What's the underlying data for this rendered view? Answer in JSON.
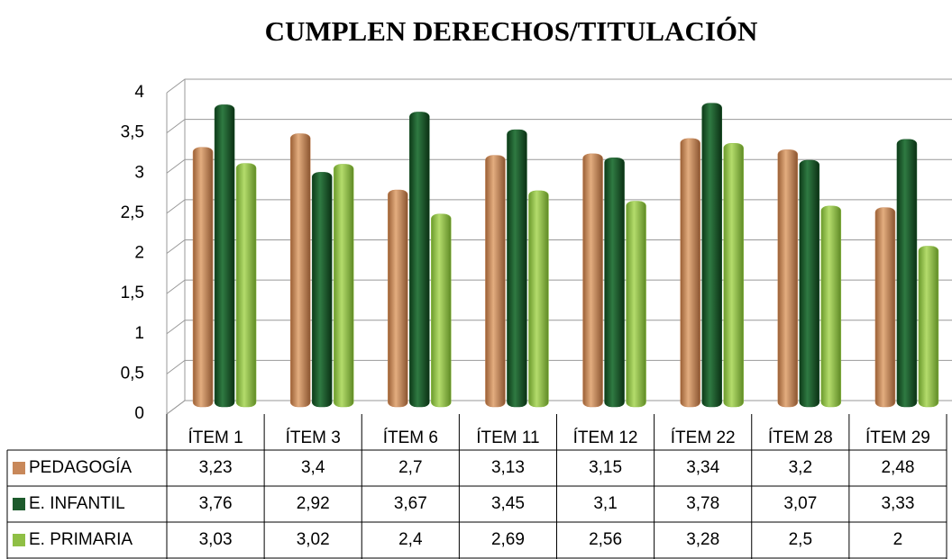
{
  "chart_data": {
    "type": "bar",
    "title": "CUMPLEN DERECHOS/TITULACIÓN",
    "categories": [
      "ÍTEM 1",
      "ÍTEM 3",
      "ÍTEM 6",
      "ÍTEM 11",
      "ÍTEM 12",
      "ÍTEM 22",
      "ÍTEM 28",
      "ÍTEM 29"
    ],
    "series": [
      {
        "name": "PEDAGOGÍA",
        "color": "#c8885a",
        "values": [
          3.23,
          3.4,
          2.7,
          3.13,
          3.15,
          3.34,
          3.2,
          2.48
        ],
        "value_labels": [
          "3,23",
          "3,4",
          "2,7",
          "3,13",
          "3,15",
          "3,34",
          "3,2",
          "2,48"
        ]
      },
      {
        "name": "E. INFANTIL",
        "color": "#1d5a2c",
        "values": [
          3.76,
          2.92,
          3.67,
          3.45,
          3.1,
          3.78,
          3.07,
          3.33
        ],
        "value_labels": [
          "3,76",
          "2,92",
          "3,67",
          "3,45",
          "3,1",
          "3,78",
          "3,07",
          "3,33"
        ]
      },
      {
        "name": "E. PRIMARIA",
        "color": "#8fbf45",
        "values": [
          3.03,
          3.02,
          2.4,
          2.69,
          2.56,
          3.28,
          2.5,
          2
        ],
        "value_labels": [
          "3,03",
          "3,02",
          "2,4",
          "2,69",
          "2,56",
          "3,28",
          "2,5",
          "2"
        ]
      }
    ],
    "ylim": [
      0,
      4
    ],
    "yticks": [
      0,
      {
        "value": 0.5,
        "label": "0,5"
      },
      1,
      {
        "value": 1.5,
        "label": "1,5"
      },
      2,
      {
        "value": 2.5,
        "label": "2,5"
      },
      3,
      {
        "value": 3.5,
        "label": "3,5"
      },
      4
    ],
    "grid": true
  }
}
